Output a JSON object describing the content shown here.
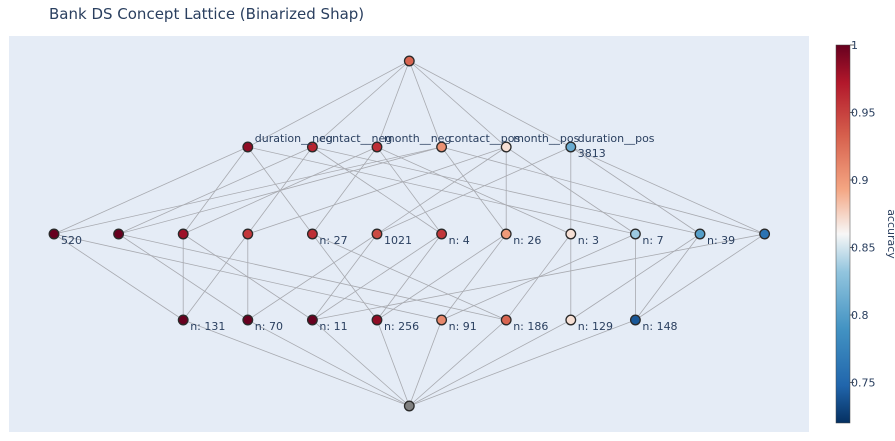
{
  "chart_data": {
    "type": "network",
    "title": "Bank DS Concept Lattice (Binarized Shap)",
    "colorbar": {
      "title": "accuracy",
      "range": [
        0.72,
        1.0
      ],
      "ticks": [
        {
          "value": 1.0,
          "label": "1"
        },
        {
          "value": 0.95,
          "label": "0.95"
        },
        {
          "value": 0.9,
          "label": "0.9"
        },
        {
          "value": 0.85,
          "label": "0.85"
        },
        {
          "value": 0.8,
          "label": "0.8"
        },
        {
          "value": 0.75,
          "label": "0.75"
        }
      ]
    },
    "levels": [
      {
        "level": 0,
        "nodes": [
          {
            "id": "top",
            "label": "",
            "accuracy": 0.93
          }
        ]
      },
      {
        "level": 1,
        "nodes": [
          {
            "id": "a1",
            "label": "duration__neg",
            "accuracy": 0.985
          },
          {
            "id": "a2",
            "label": "contact__neg",
            "accuracy": 0.965
          },
          {
            "id": "a3",
            "label": "month__neg",
            "accuracy": 0.96
          },
          {
            "id": "a4",
            "label": "contact__pos",
            "accuracy": 0.905
          },
          {
            "id": "a5",
            "label": "month__pos",
            "accuracy": 0.87
          },
          {
            "id": "a6",
            "label": "duration__pos",
            "sublabel": "3813",
            "accuracy": 0.81
          }
        ]
      },
      {
        "level": 2,
        "nodes": [
          {
            "id": "b1",
            "label": "520",
            "accuracy": 1.0
          },
          {
            "id": "b2",
            "label": "",
            "accuracy": 1.0
          },
          {
            "id": "b3",
            "label": "",
            "accuracy": 0.98
          },
          {
            "id": "b4",
            "label": "",
            "accuracy": 0.955
          },
          {
            "id": "b5",
            "label": "n: 27",
            "accuracy": 0.96
          },
          {
            "id": "b6",
            "label": "1021",
            "accuracy": 0.945
          },
          {
            "id": "b7",
            "label": "n: 4",
            "accuracy": 0.955
          },
          {
            "id": "b8",
            "label": "n: 26",
            "accuracy": 0.9
          },
          {
            "id": "b9",
            "label": "n: 3",
            "accuracy": 0.87
          },
          {
            "id": "b10",
            "label": "n: 7",
            "accuracy": 0.835
          },
          {
            "id": "b11",
            "label": "n: 39",
            "accuracy": 0.8
          },
          {
            "id": "b12",
            "label": "",
            "accuracy": 0.76
          }
        ]
      },
      {
        "level": 3,
        "nodes": [
          {
            "id": "c1",
            "label": "n: 131",
            "accuracy": 1.0
          },
          {
            "id": "c2",
            "label": "n: 70",
            "accuracy": 1.0
          },
          {
            "id": "c3",
            "label": "n: 11",
            "accuracy": 1.0
          },
          {
            "id": "c4",
            "label": "n: 256",
            "accuracy": 0.985
          },
          {
            "id": "c5",
            "label": "n: 91",
            "accuracy": 0.91
          },
          {
            "id": "c6",
            "label": "n: 186",
            "accuracy": 0.93
          },
          {
            "id": "c7",
            "label": "n: 129",
            "accuracy": 0.87
          },
          {
            "id": "c8",
            "label": "n: 148",
            "accuracy": 0.74
          }
        ]
      },
      {
        "level": 4,
        "nodes": [
          {
            "id": "bottom",
            "label": "",
            "neutral": true
          }
        ]
      }
    ],
    "edges": [
      [
        "top",
        "a1"
      ],
      [
        "top",
        "a2"
      ],
      [
        "top",
        "a3"
      ],
      [
        "top",
        "a4"
      ],
      [
        "top",
        "a5"
      ],
      [
        "top",
        "a6"
      ],
      [
        "a1",
        "b1"
      ],
      [
        "a1",
        "b3"
      ],
      [
        "a1",
        "b5"
      ],
      [
        "a1",
        "b10"
      ],
      [
        "a2",
        "b2"
      ],
      [
        "a2",
        "b4"
      ],
      [
        "a2",
        "b7"
      ],
      [
        "a2",
        "b11"
      ],
      [
        "a3",
        "b3"
      ],
      [
        "a3",
        "b5"
      ],
      [
        "a3",
        "b7"
      ],
      [
        "a3",
        "b9"
      ],
      [
        "a4",
        "b1"
      ],
      [
        "a4",
        "b2"
      ],
      [
        "a4",
        "b8"
      ],
      [
        "a4",
        "b12"
      ],
      [
        "a5",
        "b4"
      ],
      [
        "a5",
        "b6"
      ],
      [
        "a5",
        "b8"
      ],
      [
        "a5",
        "b10"
      ],
      [
        "a6",
        "b6"
      ],
      [
        "a6",
        "b9"
      ],
      [
        "a6",
        "b11"
      ],
      [
        "a6",
        "b12"
      ],
      [
        "b1",
        "c1"
      ],
      [
        "b1",
        "c5"
      ],
      [
        "b2",
        "c2"
      ],
      [
        "b2",
        "c6"
      ],
      [
        "b3",
        "c1"
      ],
      [
        "b3",
        "c3"
      ],
      [
        "b4",
        "c1"
      ],
      [
        "b4",
        "c2"
      ],
      [
        "b5",
        "c4"
      ],
      [
        "b5",
        "c6"
      ],
      [
        "b6",
        "c2"
      ],
      [
        "b6",
        "c3"
      ],
      [
        "b7",
        "c3"
      ],
      [
        "b7",
        "c4"
      ],
      [
        "b8",
        "c4"
      ],
      [
        "b8",
        "c5"
      ],
      [
        "b9",
        "c7"
      ],
      [
        "b9",
        "c6"
      ],
      [
        "b10",
        "c8"
      ],
      [
        "b10",
        "c5"
      ],
      [
        "b11",
        "c7"
      ],
      [
        "b11",
        "c8"
      ],
      [
        "b12",
        "c8"
      ],
      [
        "b12",
        "c3"
      ],
      [
        "c1",
        "bottom"
      ],
      [
        "c2",
        "bottom"
      ],
      [
        "c3",
        "bottom"
      ],
      [
        "c4",
        "bottom"
      ],
      [
        "c5",
        "bottom"
      ],
      [
        "c6",
        "bottom"
      ],
      [
        "c7",
        "bottom"
      ],
      [
        "c8",
        "bottom"
      ]
    ],
    "legend": "none",
    "grid": false
  }
}
